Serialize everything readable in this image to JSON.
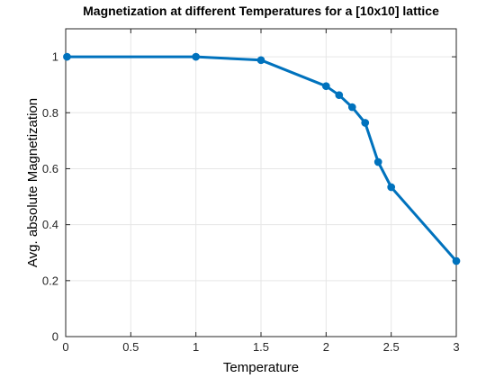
{
  "chart_data": {
    "type": "line",
    "title": "Magnetization at different Temperatures for a [10x10] lattice",
    "xlabel": "Temperature",
    "ylabel": "Avg. absolute Magnetization",
    "xlim": [
      0,
      3
    ],
    "ylim": [
      0,
      1.1
    ],
    "xticks": [
      0,
      0.5,
      1,
      1.5,
      2,
      2.5,
      3
    ],
    "xtick_labels": [
      "0",
      "0.5",
      "1",
      "1.5",
      "2",
      "2.5",
      "3"
    ],
    "yticks": [
      0,
      0.2,
      0.4,
      0.6,
      0.8,
      1
    ],
    "ytick_labels": [
      "0",
      "0.2",
      "0.4",
      "0.6",
      "0.8",
      "1"
    ],
    "grid": true,
    "series": [
      {
        "x": [
          0.01,
          1,
          1.5,
          2,
          2.1,
          2.2,
          2.3,
          2.4,
          2.5,
          3
        ],
        "y": [
          1.0,
          1.0,
          0.988,
          0.895,
          0.863,
          0.82,
          0.764,
          0.624,
          0.534,
          0.27
        ],
        "color": "#0072bd"
      }
    ]
  }
}
